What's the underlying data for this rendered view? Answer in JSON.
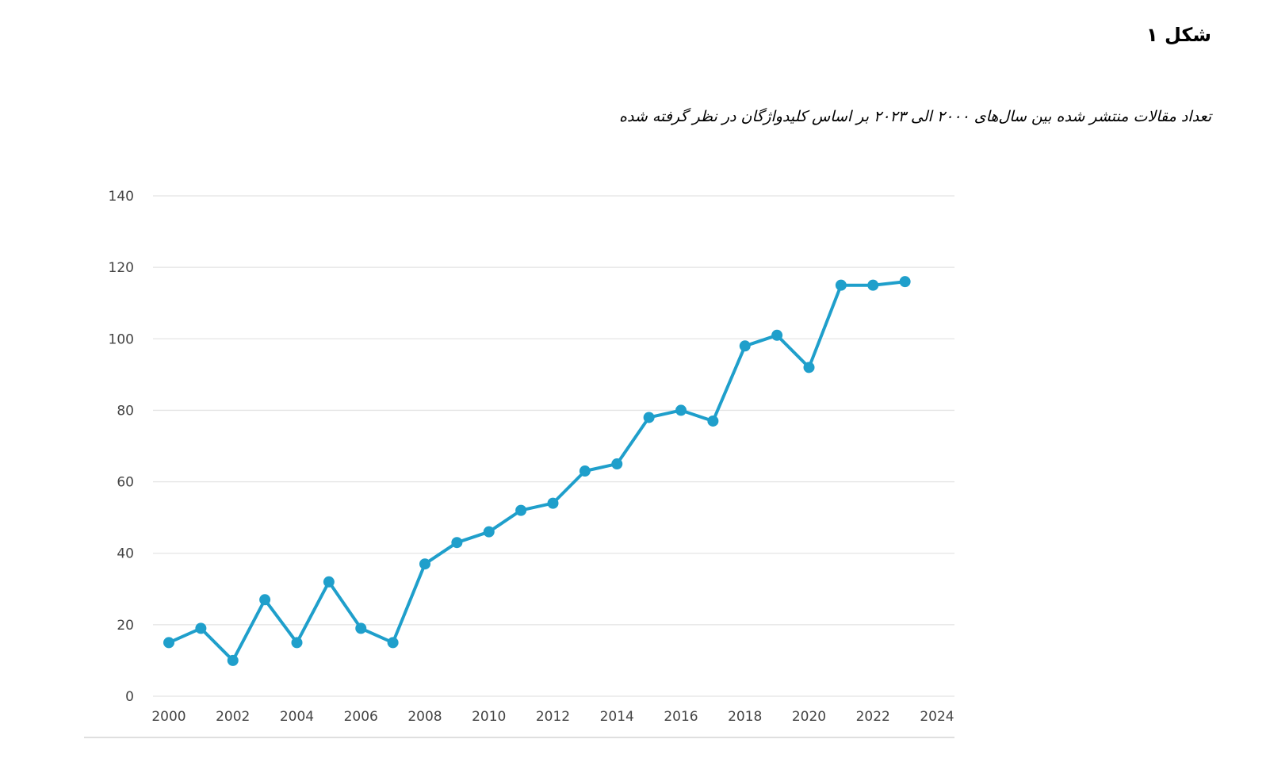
{
  "figure": {
    "label": "شکل ۱",
    "caption": "تعداد مقالات منتشر شده بین سال‌های ۲۰۰۰ الی ۲۰۲۳ بر اساس کلیدواژگان در نظر گرفته شده"
  },
  "chart_data": {
    "type": "line",
    "title": "",
    "xlabel": "",
    "ylabel": "",
    "x": [
      2000,
      2001,
      2002,
      2003,
      2004,
      2005,
      2006,
      2007,
      2008,
      2009,
      2010,
      2011,
      2012,
      2013,
      2014,
      2015,
      2016,
      2017,
      2018,
      2019,
      2020,
      2021,
      2022,
      2023
    ],
    "series": [
      {
        "values": [
          15,
          19,
          10,
          27,
          15,
          32,
          19,
          15,
          37,
          43,
          46,
          52,
          54,
          63,
          65,
          78,
          80,
          77,
          98,
          101,
          92,
          115,
          115,
          116
        ]
      }
    ],
    "xlim": [
      2000,
      2024
    ],
    "ylim": [
      0,
      140
    ],
    "x_ticks": [
      "2000",
      "2002",
      "2004",
      "2006",
      "2008",
      "2010",
      "2012",
      "2014",
      "2016",
      "2018",
      "2020",
      "2022",
      "2024"
    ],
    "y_ticks": [
      "0",
      "20",
      "40",
      "60",
      "80",
      "100",
      "120",
      "140"
    ],
    "grid": "horizontal",
    "legend": "none",
    "line_color": "#1f9fcb",
    "grid_color": "#e4e4e4",
    "axis_color": "#cccccc"
  }
}
